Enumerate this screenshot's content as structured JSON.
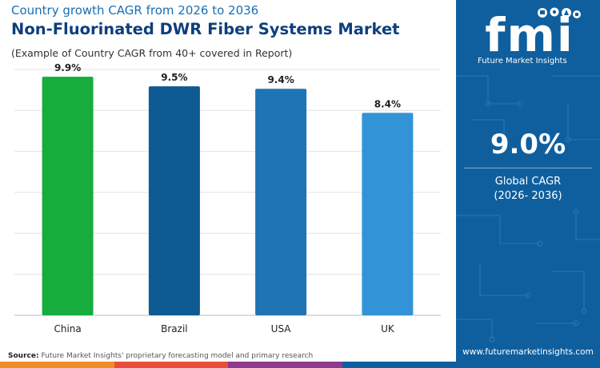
{
  "header": {
    "supertitle": "Country growth CAGR from 2026 to 2036",
    "title": "Non-Fluorinated DWR Fiber Systems Market",
    "subtitle": "(Example of Country CAGR from 40+ covered in Report)"
  },
  "chart_data": {
    "type": "bar",
    "categories": [
      "China",
      "Brazil",
      "USA",
      "UK"
    ],
    "values": [
      9.9,
      9.5,
      9.4,
      8.4
    ],
    "value_labels": [
      "9.9%",
      "9.5%",
      "9.4%",
      "8.4%"
    ],
    "bar_colors": [
      "#16ad3d",
      "#0e5a92",
      "#1f74b3",
      "#3294d6"
    ],
    "ylim": [
      0,
      10.2
    ],
    "grid": true,
    "title": "",
    "xlabel": "",
    "ylabel": ""
  },
  "footer": {
    "source_label": "Source:",
    "source_text": "Future Market Insights' proprietary forecasting model and primary research",
    "strip_colors": [
      "#f28c28",
      "#e94e3c",
      "#8e3a8f",
      "#0f5f9e"
    ]
  },
  "sidebar": {
    "logo_text": "fmi",
    "logo_tagline": "Future Market Insights",
    "global_cagr_value": "9.0%",
    "global_cagr_label": "Global CAGR",
    "global_cagr_period": "(2026- 2036)",
    "website": "www.futuremarketinsights.com",
    "background_color": "#0f5f9e"
  }
}
